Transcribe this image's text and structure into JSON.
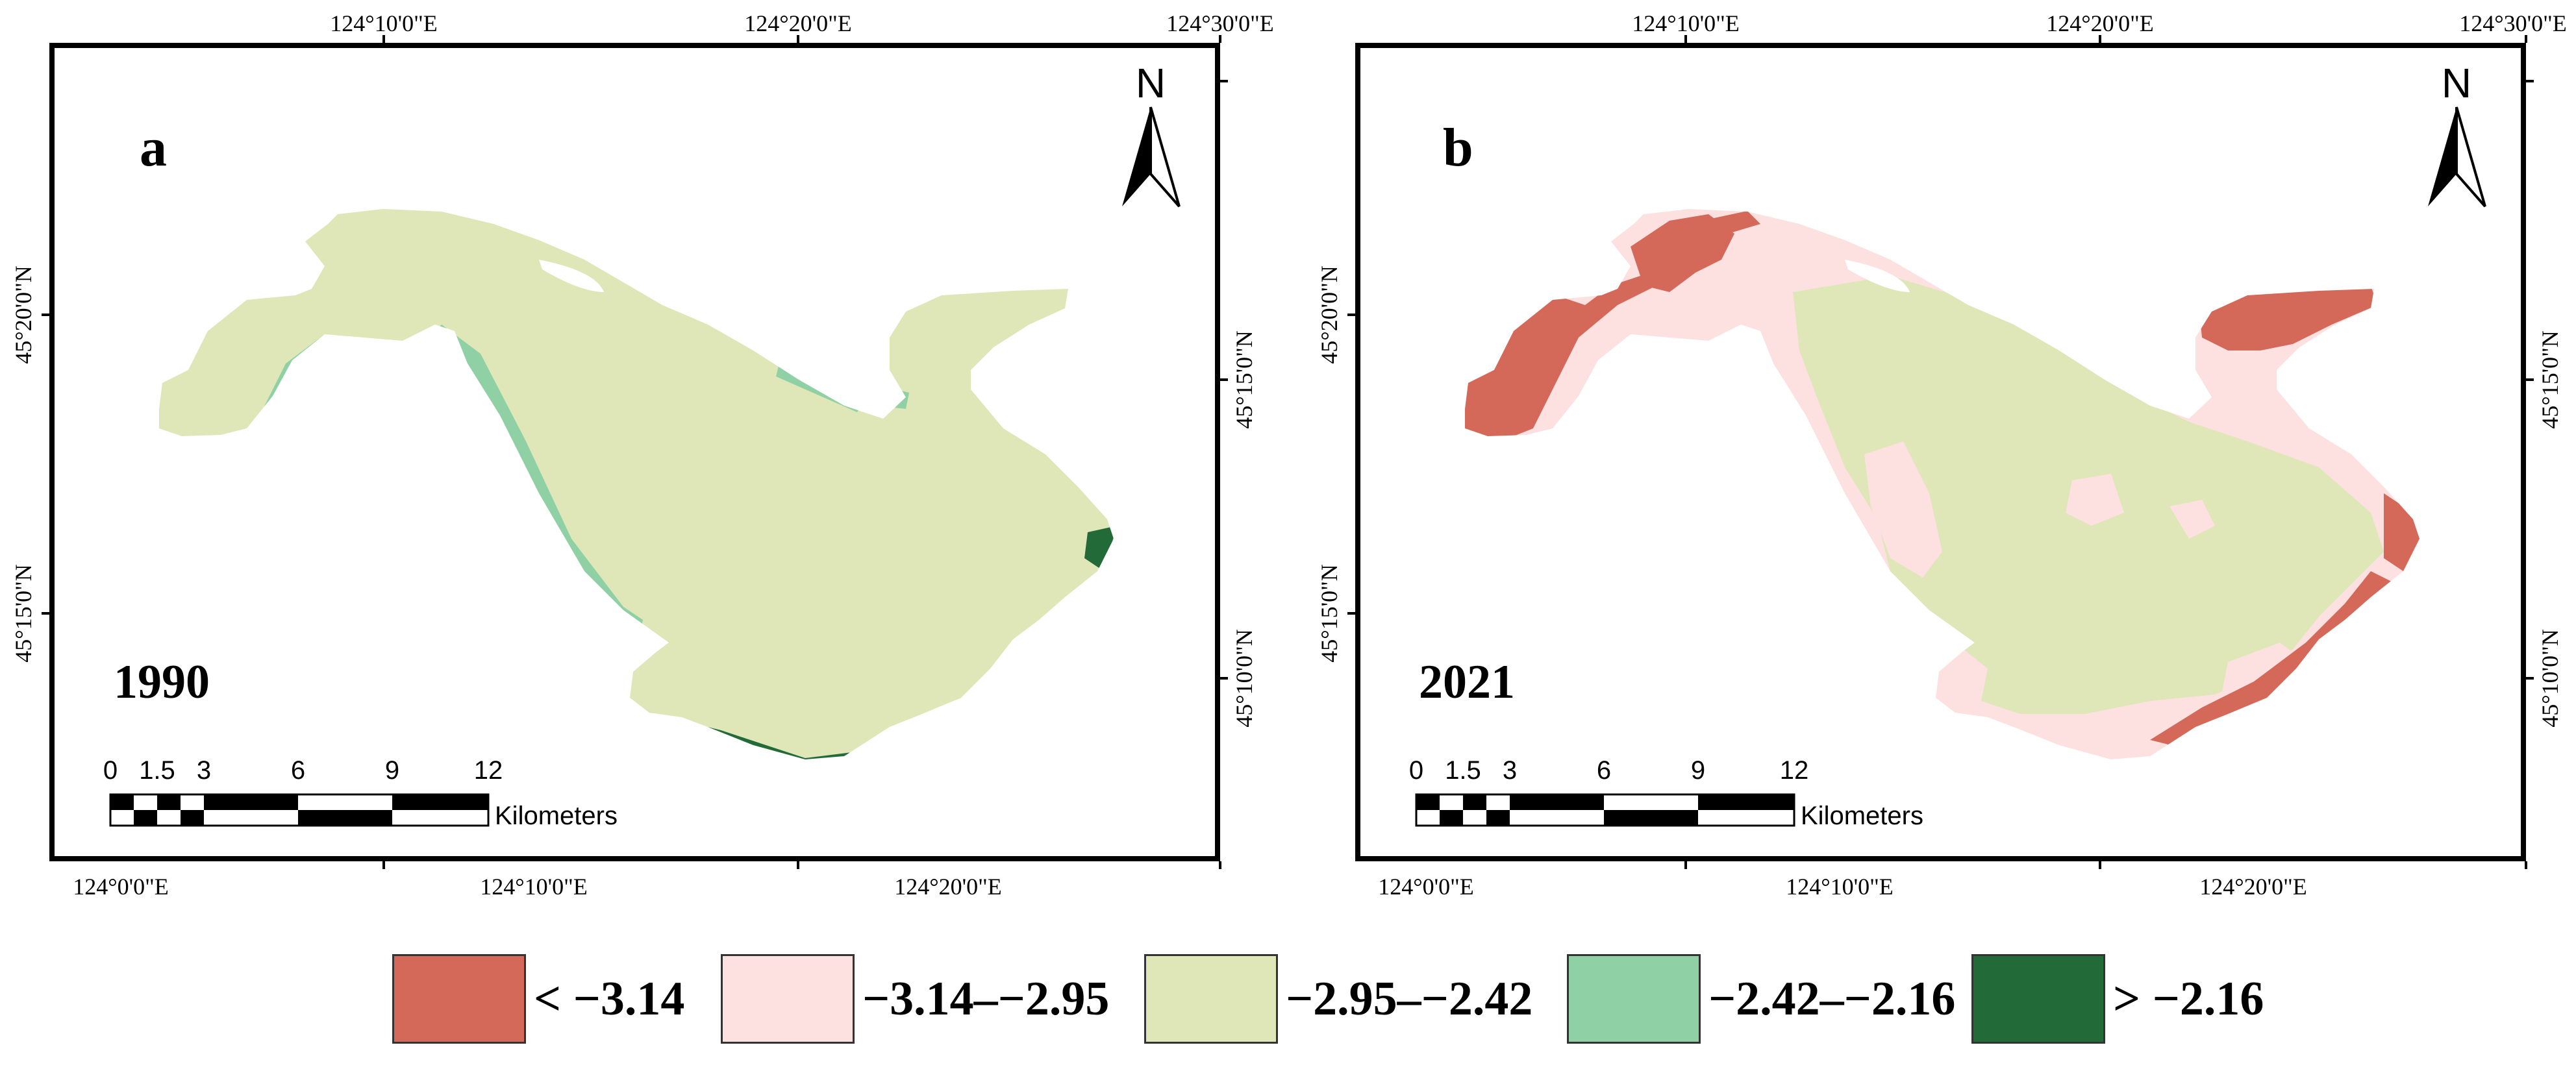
{
  "panels": [
    {
      "letter": "a",
      "year": "1990",
      "top_ticks": [
        "124°10'0\"E",
        "124°20'0\"E",
        "124°30'0\"E"
      ],
      "bottom_ticks": [
        "124°0'0\"E",
        "124°10'0\"E",
        "124°20'0\"E"
      ],
      "left_ticks": [
        "45°20'0\"N",
        "45°15'0\"N"
      ],
      "right_ticks": [
        "45°15'0\"N",
        "45°10'0\"N"
      ],
      "north_label": "N",
      "scale_labels": [
        "0",
        "1.5",
        "3",
        "6",
        "9",
        "12"
      ],
      "scale_unit": "Kilometers"
    },
    {
      "letter": "b",
      "year": "2021",
      "top_ticks": [
        "124°10'0\"E",
        "124°20'0\"E",
        "124°30'0\"E"
      ],
      "bottom_ticks": [
        "124°0'0\"E",
        "124°10'0\"E",
        "124°20'0\"E"
      ],
      "left_ticks": [
        "45°20'0\"N",
        "45°15'0\"N"
      ],
      "right_ticks": [
        "45°15'0\"N",
        "45°10'0\"N"
      ],
      "north_label": "N",
      "scale_labels": [
        "0",
        "1.5",
        "3",
        "6",
        "9",
        "12"
      ],
      "scale_unit": "Kilometers"
    }
  ],
  "legend": [
    {
      "label": "< −3.14",
      "color": "#d4695a"
    },
    {
      "label": "−3.14–−2.95",
      "color": "#fde0e0"
    },
    {
      "label": "−2.95–−2.42",
      "color": "#dfe6b8"
    },
    {
      "label": "−2.42–−2.16",
      "color": "#8fd0a4"
    },
    {
      "label": "> −2.16",
      "color": "#226a37"
    }
  ],
  "colors": {
    "lake_main": "#dfe6b8",
    "class_lowest": "#d4695a",
    "class_low": "#fde0e0",
    "class_mid_high": "#8fd0a4",
    "class_highest": "#226a37",
    "frame": "#000000"
  }
}
